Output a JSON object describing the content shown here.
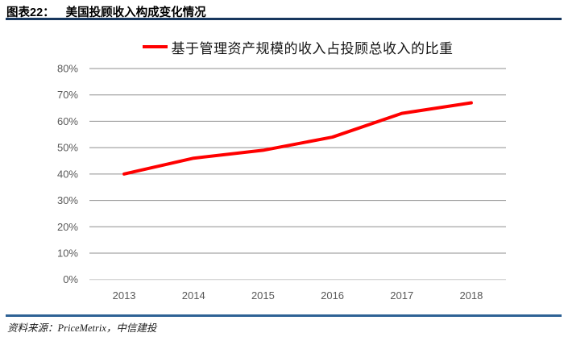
{
  "header": {
    "label": "图表22：",
    "title": "美国投顾收入构成变化情况"
  },
  "legend": {
    "series_label": "基于管理资产规模的收入占投顾总收入的比重"
  },
  "chart_data": {
    "type": "line",
    "title": "美国投顾收入构成变化情况",
    "categories": [
      "2013",
      "2014",
      "2015",
      "2016",
      "2017",
      "2018"
    ],
    "series": [
      {
        "name": "基于管理资产规模的收入占投顾总收入的比重",
        "color": "#ff0000",
        "values": [
          40,
          46,
          49,
          54,
          63,
          67
        ]
      }
    ],
    "ylim": [
      0,
      80
    ],
    "ytick_step": 10,
    "ytick_suffix": "%",
    "grid": true,
    "legend_position": "top-center"
  },
  "footer": {
    "source_label": "资料来源：",
    "source_text": "PriceMetrix，中信建投"
  },
  "colors": {
    "header_rule": "#17375e",
    "footer_rule": "#2e6295",
    "series_line": "#ff0000",
    "gridline": "#8f8f8f",
    "baseline": "#c9c9c9",
    "axis_text": "#595959"
  }
}
